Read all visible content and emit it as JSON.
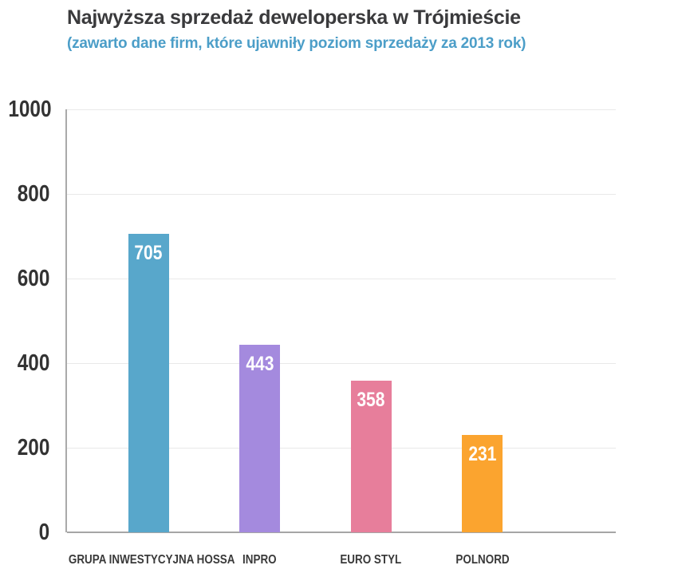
{
  "header": {
    "title": "Najwyższa sprzedaż deweloperska w Trójmieście",
    "subtitle": "(zawarto dane firm, które ujawniły poziom sprzedaży za 2013 rok)"
  },
  "colors": {
    "title_text": "#3a3a3c",
    "subtitle_text": "#4c9ec8",
    "axis_label_text": "#333333",
    "value_label_text": "#ffffff",
    "gridline": "#e9e9e9",
    "axis_line": "#a6a6a6",
    "background": "#ffffff"
  },
  "chart_data": {
    "type": "bar",
    "title": "Najwyższa sprzedaż deweloperska w Trójmieście",
    "subtitle": "(zawarto dane firm, które ujawniły poziom sprzedaży za 2013 rok)",
    "categories": [
      "GRUPA INWESTYCYJNA HOSSA",
      "INPRO",
      "EURO STYL",
      "POLNORD"
    ],
    "values": [
      705,
      443,
      358,
      231
    ],
    "bar_colors": [
      "#58a7cb",
      "#a48ade",
      "#e77e9b",
      "#fba42f"
    ],
    "value_labels": [
      "705",
      "443",
      "358",
      "231"
    ],
    "value_label_position": "inside-top",
    "xlabel": "",
    "ylabel": "",
    "ylim": [
      0,
      1000
    ],
    "yticks": [
      0,
      200,
      400,
      600,
      800,
      1000
    ],
    "grid": "horizontal",
    "legend": "none"
  }
}
